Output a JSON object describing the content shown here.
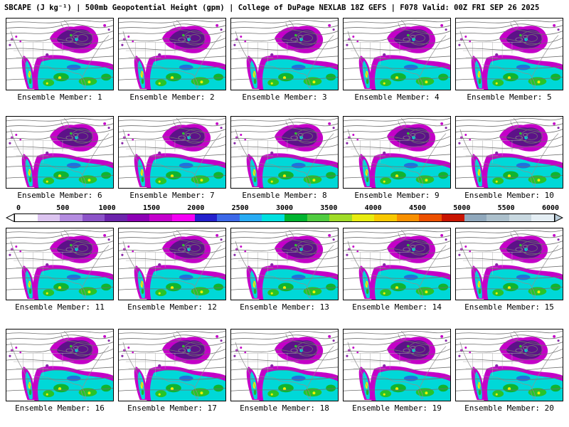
{
  "title": "SBCAPE (J kg⁻¹) | 500mb Geopotential Height (gpm) | College of DuPage NEXLAB 18Z GEFS | F078 Valid: 00Z FRI SEP 26 2025",
  "panels": [
    {
      "label": "Ensemble Member: 1"
    },
    {
      "label": "Ensemble Member: 2"
    },
    {
      "label": "Ensemble Member: 3"
    },
    {
      "label": "Ensemble Member: 4"
    },
    {
      "label": "Ensemble Member: 5"
    },
    {
      "label": "Ensemble Member: 6"
    },
    {
      "label": "Ensemble Member: 7"
    },
    {
      "label": "Ensemble Member: 8"
    },
    {
      "label": "Ensemble Member: 9"
    },
    {
      "label": "Ensemble Member: 10"
    },
    {
      "label": "Ensemble Member: 11"
    },
    {
      "label": "Ensemble Member: 12"
    },
    {
      "label": "Ensemble Member: 13"
    },
    {
      "label": "Ensemble Member: 14"
    },
    {
      "label": "Ensemble Member: 15"
    },
    {
      "label": "Ensemble Member: 16"
    },
    {
      "label": "Ensemble Member: 17"
    },
    {
      "label": "Ensemble Member: 18"
    },
    {
      "label": "Ensemble Member: 19"
    },
    {
      "label": "Ensemble Member: 20"
    }
  ],
  "colorbar": {
    "ticks": [
      "0",
      "500",
      "1000",
      "1500",
      "2000",
      "2500",
      "3000",
      "3500",
      "4000",
      "4500",
      "5000",
      "5500",
      "6000"
    ],
    "colors": [
      "#ffffff",
      "#dcc4f0",
      "#b48ce0",
      "#8c54c8",
      "#6c24ac",
      "#8c00b4",
      "#c400cc",
      "#f400f4",
      "#2420cc",
      "#3c68e8",
      "#28acf4",
      "#00e0e0",
      "#00b430",
      "#50cc40",
      "#a0dc28",
      "#e8ec10",
      "#f8c800",
      "#f89000",
      "#ec5000",
      "#c81400",
      "#90a8bc",
      "#acc0cc",
      "#c8d8e0",
      "#e4eef4"
    ],
    "left_arrow_color": "#ffffff",
    "right_arrow_color": "#b8ccd8"
  },
  "chart_data": {
    "type": "heatmap",
    "title": "SBCAPE (J kg⁻¹) | 500mb Geopotential Height (gpm)",
    "model": "College of DuPage NEXLAB 18Z GEFS",
    "forecast_hour": "F078",
    "valid": "00Z FRI SEP 26 2025",
    "variable_shaded": "SBCAPE",
    "variable_shaded_units": "J kg⁻¹",
    "variable_contoured": "500mb Geopotential Height (gpm)",
    "ensemble_members": [
      1,
      2,
      3,
      4,
      5,
      6,
      7,
      8,
      9,
      10,
      11,
      12,
      13,
      14,
      15,
      16,
      17,
      18,
      19,
      20
    ],
    "panel_labels_format": "Ensemble Member: N",
    "colorbar_ticks": [
      0,
      500,
      1000,
      1500,
      2000,
      2500,
      3000,
      3500,
      4000,
      4500,
      5000,
      5500,
      6000
    ],
    "colorbar_range": [
      0,
      6000
    ],
    "colorbar_interval": 250,
    "layout": "4 rows x 5 columns of CONUS/North America map panels; shared horizontal colorbar between rows 2 and 3",
    "depicted_pattern": "High SBCAPE (cyan/green, locally yellow) over the Gulf of Mexico, Southeast US and western Atlantic; moderate CAPE (magenta/purple) over the Midwest-Great Lakes-Northeast and along the west coast of Mexico; 500mb height contours with an eastern trough/closed low over the Great Lakes region in every member"
  }
}
